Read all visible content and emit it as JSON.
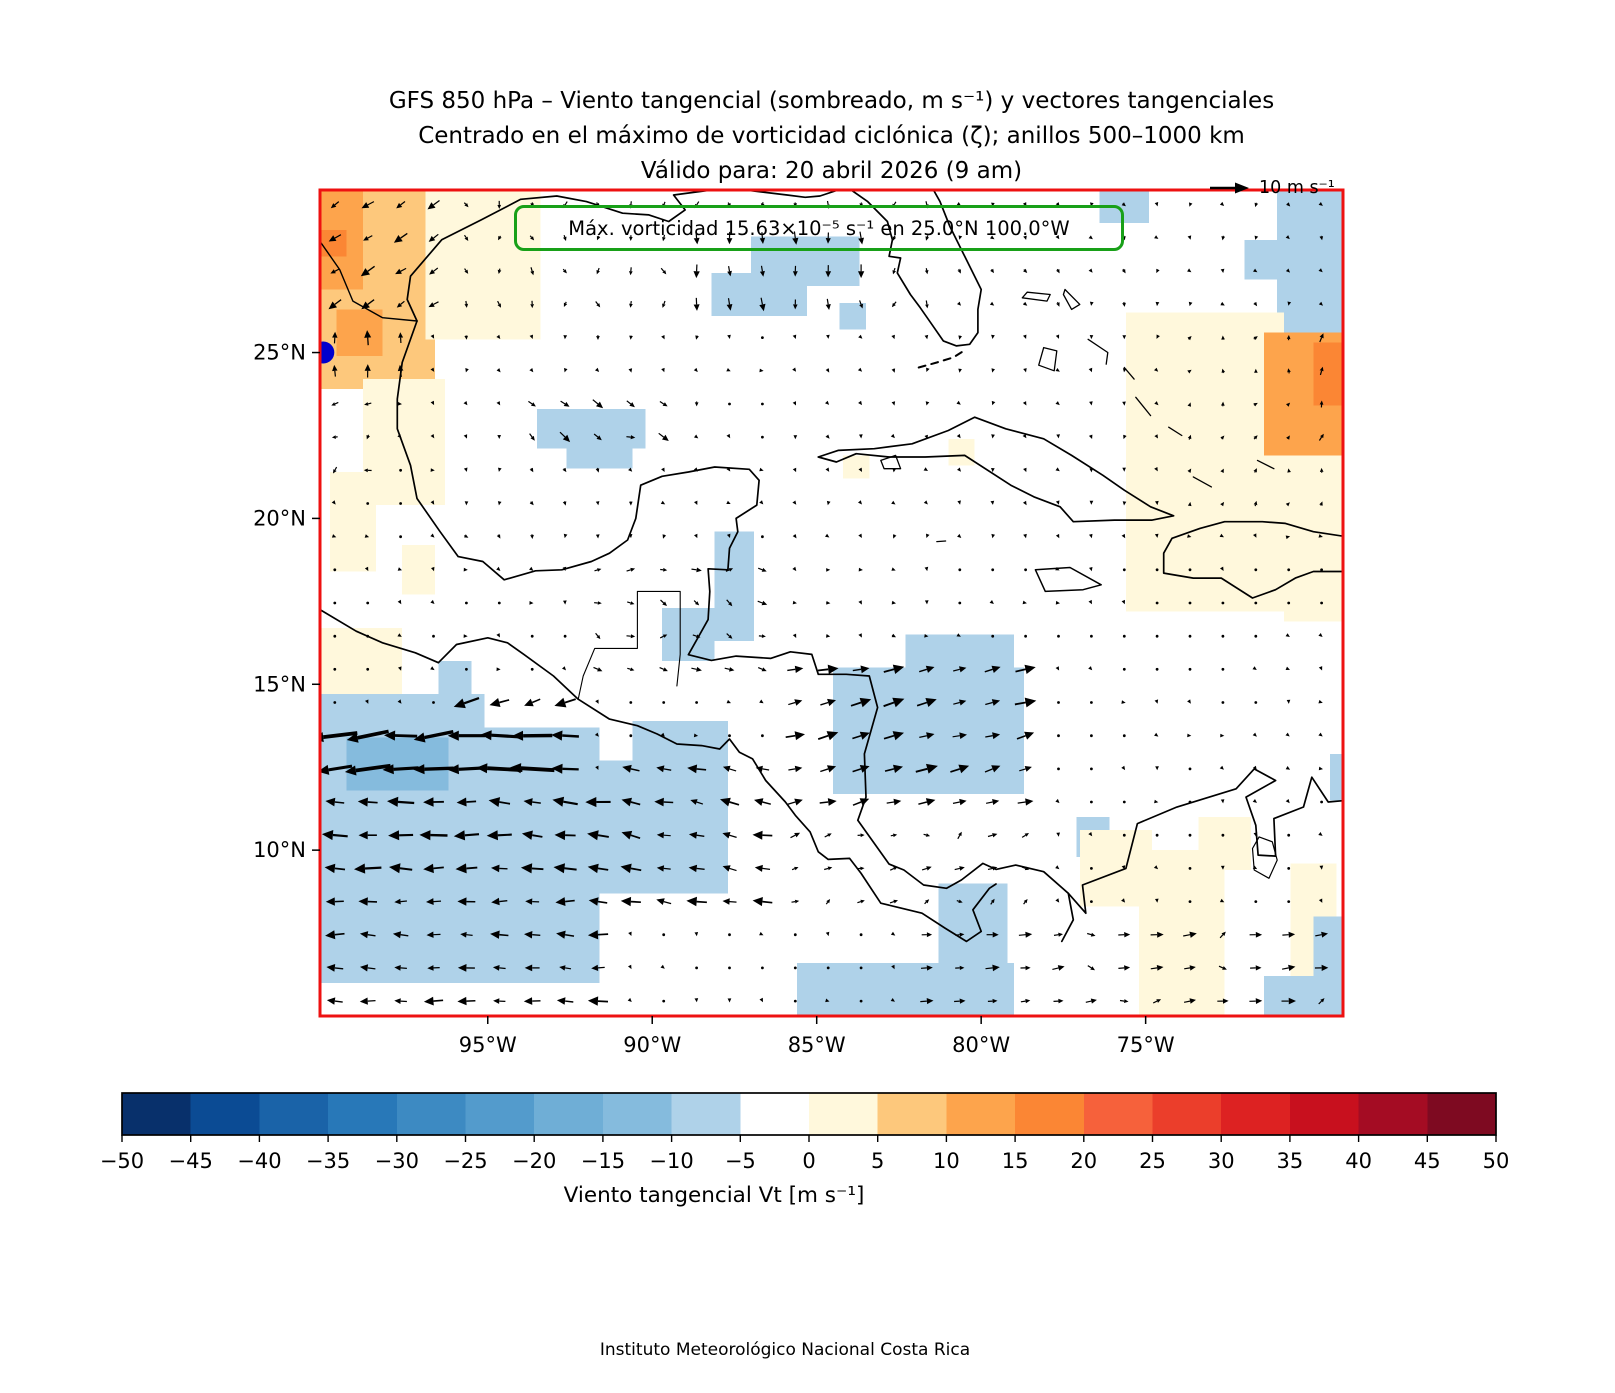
{
  "title": {
    "line1": "GFS 850 hPa – Viento tangencial (sombreado, m s⁻¹) y vectores tangenciales",
    "line2": "Centrado en el máximo de vorticidad ciclónica (ζ); anillos 500–1000 km",
    "line3": "Válido para: 20 abril 2026 (9 am)"
  },
  "quiver_key": {
    "label": "10 m s⁻¹"
  },
  "annotation": {
    "text": "Máx. vorticidad 15.63×10⁻⁵ s⁻¹ en 25.0°N 100.0°W"
  },
  "footer": {
    "text": "Instituto Meteorológico Nacional Costa Rica"
  },
  "axes": {
    "x_ticks": [
      {
        "label": "95°W",
        "lon": -95
      },
      {
        "label": "90°W",
        "lon": -90
      },
      {
        "label": "85°W",
        "lon": -85
      },
      {
        "label": "80°W",
        "lon": -80
      },
      {
        "label": "75°W",
        "lon": -75
      }
    ],
    "y_ticks": [
      {
        "label": "25°N",
        "lat": 25
      },
      {
        "label": "20°N",
        "lat": 20
      },
      {
        "label": "15°N",
        "lat": 15
      },
      {
        "label": "10°N",
        "lat": 10
      }
    ]
  },
  "colorbar": {
    "label": "Viento tangencial Vt [m s⁻¹]",
    "tick_values": [
      -50,
      -45,
      -40,
      -35,
      -30,
      -25,
      -20,
      -15,
      -10,
      -5,
      0,
      5,
      10,
      15,
      20,
      25,
      30,
      35,
      40,
      45,
      50
    ]
  },
  "colors": {
    "frame": "#EE1111",
    "annotation_border": "#18A018",
    "marker": "#0000CD",
    "vector": "#000000",
    "coastline": "#000000"
  },
  "chart_data": {
    "type": "heatmap",
    "variable": "Viento tangencial Vt [m s⁻¹] at 850 hPa with tangential wind vectors",
    "valid_time": "20 abril 2026 (9 am)",
    "reference_vector_ms": 10,
    "map_extent": {
      "lon_min": -100.1,
      "lon_max": -69.0,
      "lat_min": 5.0,
      "lat_max": 29.9
    },
    "levels": [
      -50,
      -45,
      -40,
      -35,
      -30,
      -25,
      -20,
      -15,
      -10,
      -5,
      0,
      5,
      10,
      15,
      20,
      25,
      30,
      35,
      40,
      45,
      50
    ],
    "colors": [
      "#08306B",
      "#0B4B94",
      "#1A63A8",
      "#2878B8",
      "#3D8AC2",
      "#539BCC",
      "#6FAED6",
      "#85BBDD",
      "#AFD2E9",
      "#FFFFFF",
      "#FFF8DC",
      "#FDC87C",
      "#FDA44C",
      "#FB8634",
      "#F6613B",
      "#EB3E2B",
      "#DD2222",
      "#C8101E",
      "#A40C23",
      "#7E0A21"
    ],
    "vorticity_max": {
      "label": "15.63×10⁻⁵ s⁻¹",
      "lat": 25.0,
      "lon": -100.0
    },
    "grid_step_deg": 1.0,
    "default_wind": {
      "u": 0.7,
      "v": -0.7
    },
    "shaded_regions": [
      [
        -100.1,
        23.9,
        -96.6,
        29.9,
        7
      ],
      [
        -100.1,
        26.9,
        -98.8,
        29.9,
        12
      ],
      [
        -99.6,
        24.9,
        -98.2,
        26.3,
        12
      ],
      [
        -100.1,
        27.9,
        -99.3,
        28.7,
        17
      ],
      [
        -96.9,
        25.4,
        -93.4,
        29.9,
        2
      ],
      [
        -98.8,
        20.4,
        -96.3,
        24.2,
        2
      ],
      [
        -99.8,
        18.4,
        -98.4,
        21.4,
        2
      ],
      [
        -100.1,
        14.7,
        -97.6,
        16.7,
        2
      ],
      [
        -97.6,
        17.7,
        -96.6,
        19.2,
        2
      ],
      [
        -100.1,
        6.0,
        -91.6,
        13.7,
        -7
      ],
      [
        -91.6,
        8.7,
        -87.7,
        12.7,
        -7
      ],
      [
        -100.1,
        13.7,
        -95.1,
        14.7,
        -7
      ],
      [
        -99.3,
        11.8,
        -96.2,
        13.4,
        -12
      ],
      [
        -96.5,
        14.7,
        -95.5,
        15.7,
        -7
      ],
      [
        -90.6,
        12.7,
        -87.7,
        13.9,
        -7
      ],
      [
        -84.5,
        11.7,
        -78.7,
        15.5,
        -7
      ],
      [
        -82.3,
        15.5,
        -79.0,
        16.5,
        -7
      ],
      [
        -77.1,
        9.8,
        -76.1,
        11.0,
        -7
      ],
      [
        -81.3,
        5.8,
        -79.2,
        9.0,
        -7
      ],
      [
        -85.6,
        5.0,
        -79.0,
        6.6,
        -7
      ],
      [
        -87.0,
        27.0,
        -83.7,
        28.5,
        -7
      ],
      [
        -88.2,
        26.1,
        -85.3,
        27.4,
        -7
      ],
      [
        -84.3,
        25.7,
        -83.5,
        26.5,
        -7
      ],
      [
        -93.5,
        22.1,
        -90.2,
        23.3,
        -7
      ],
      [
        -92.6,
        21.5,
        -90.6,
        22.1,
        -7
      ],
      [
        -88.1,
        16.3,
        -86.9,
        19.6,
        -7
      ],
      [
        -89.7,
        15.7,
        -88.1,
        17.3,
        -7
      ],
      [
        -76.4,
        28.9,
        -74.9,
        29.9,
        -7
      ],
      [
        -71.0,
        25.6,
        -69.0,
        29.9,
        -7
      ],
      [
        -72.0,
        27.2,
        -71.0,
        28.4,
        -7
      ],
      [
        -75.6,
        17.2,
        -70.8,
        26.2,
        2
      ],
      [
        -70.8,
        16.9,
        -69.0,
        21.9,
        2
      ],
      [
        -71.4,
        21.9,
        -69.0,
        25.6,
        12
      ],
      [
        -69.9,
        23.4,
        -69.0,
        25.3,
        17
      ],
      [
        -84.2,
        21.2,
        -83.4,
        21.9,
        2
      ],
      [
        -81.0,
        21.6,
        -80.2,
        22.4,
        2
      ],
      [
        -77.0,
        8.3,
        -74.8,
        10.6,
        2
      ],
      [
        -75.2,
        5.0,
        -72.6,
        10.0,
        2
      ],
      [
        -73.4,
        9.4,
        -71.8,
        11.0,
        2
      ],
      [
        -70.6,
        5.0,
        -69.2,
        9.6,
        2
      ],
      [
        -71.4,
        5.0,
        -69.0,
        6.2,
        -7
      ],
      [
        -69.9,
        5.0,
        -69.0,
        8.0,
        -7
      ],
      [
        -69.4,
        11.5,
        -69.0,
        12.9,
        -7
      ]
    ],
    "wind_zones": [
      {
        "b": [
          -100.1,
          11.7,
          -92.6,
          14.3
        ],
        "u": -15,
        "v": -1
      },
      {
        "b": [
          -96.5,
          13.9,
          -92.6,
          15.2
        ],
        "u": -9,
        "v": -2.5
      },
      {
        "b": [
          -100.1,
          8.5,
          -91.6,
          11.7
        ],
        "u": -9,
        "v": 0.4
      },
      {
        "b": [
          -100.1,
          5.0,
          -91.6,
          8.5
        ],
        "u": -6.5,
        "v": 0.2
      },
      {
        "b": [
          -91.6,
          8.2,
          -85.9,
          13.2
        ],
        "u": -6.5,
        "v": 1.2
      },
      {
        "b": [
          -86.5,
          11.4,
          -78.3,
          15.9
        ],
        "u": 7,
        "v": 1.8
      },
      {
        "b": [
          -86.5,
          8.0,
          -78.3,
          11.4
        ],
        "u": 3.2,
        "v": 1.2
      },
      {
        "b": [
          -82.5,
          5.0,
          -69.0,
          8.2
        ],
        "u": 4.5,
        "v": 0.6
      },
      {
        "b": [
          -100.1,
          25.9,
          -96.2,
          29.9
        ],
        "u": -4.5,
        "v": -3
      },
      {
        "b": [
          -100.1,
          23.7,
          -97.4,
          25.9
        ],
        "u": -0.4,
        "v": 5.5
      },
      {
        "b": [
          -100.1,
          20.8,
          -97.8,
          23.7
        ],
        "u": -2.2,
        "v": -1.2
      },
      {
        "b": [
          -88.7,
          25.7,
          -83.3,
          28.9
        ],
        "u": 0.3,
        "v": -4.5
      },
      {
        "b": [
          -96.2,
          25.9,
          -81.0,
          29.9
        ],
        "u": 0.2,
        "v": -2.6
      },
      {
        "b": [
          -94.1,
          21.7,
          -89.6,
          23.5
        ],
        "u": 3.5,
        "v": -3
      },
      {
        "b": [
          -96.2,
          18.9,
          -88.5,
          25.9
        ],
        "u": 0.6,
        "v": -1.4
      },
      {
        "b": [
          -92.6,
          15.2,
          -86.6,
          18.9
        ],
        "u": 3.5,
        "v": -1
      },
      {
        "b": [
          -70.6,
          22.4,
          -69.0,
          26.4
        ],
        "u": 1.2,
        "v": 3.2
      },
      {
        "b": [
          -74.4,
          19.9,
          -69.0,
          26.4
        ],
        "u": 0.6,
        "v": 1.6
      },
      {
        "b": [
          -81.0,
          26.4,
          -69.0,
          29.9
        ],
        "u": 0.5,
        "v": -1.5
      },
      {
        "b": [
          -85.9,
          19.4,
          -74.4,
          26.4
        ],
        "u": 0.4,
        "v": -1.3
      },
      {
        "b": [
          -76.4,
          15.4,
          -69.0,
          19.9
        ],
        "u": 0.8,
        "v": -0.4
      },
      {
        "b": [
          -86.6,
          15.9,
          -82.5,
          19.4
        ],
        "u": 1.2,
        "v": -0.8
      }
    ]
  }
}
